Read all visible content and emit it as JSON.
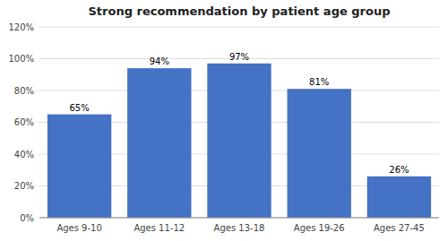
{
  "chart_data": {
    "type": "bar",
    "title": "Strong recommendation by patient age group",
    "categories": [
      "Ages 9-10",
      "Ages 11-12",
      "Ages 13-18",
      "Ages 19-26",
      "Ages 27-45"
    ],
    "values": [
      0.65,
      0.94,
      0.97,
      0.81,
      0.26
    ],
    "value_labels": [
      "65%",
      "94%",
      "97%",
      "81%",
      "26%"
    ],
    "color": "#4472C4",
    "ylim": [
      0,
      1.2
    ],
    "yticks": [
      {
        "value": 0,
        "label": "0%"
      },
      {
        "value": 0.2,
        "label": "20%"
      },
      {
        "value": 0.4,
        "label": "40%"
      },
      {
        "value": 0.6,
        "label": "60%"
      },
      {
        "value": 0.8,
        "label": "80%"
      },
      {
        "value": 1.0,
        "label": "100%"
      },
      {
        "value": 1.2,
        "label": "120%"
      }
    ],
    "grid": true
  }
}
